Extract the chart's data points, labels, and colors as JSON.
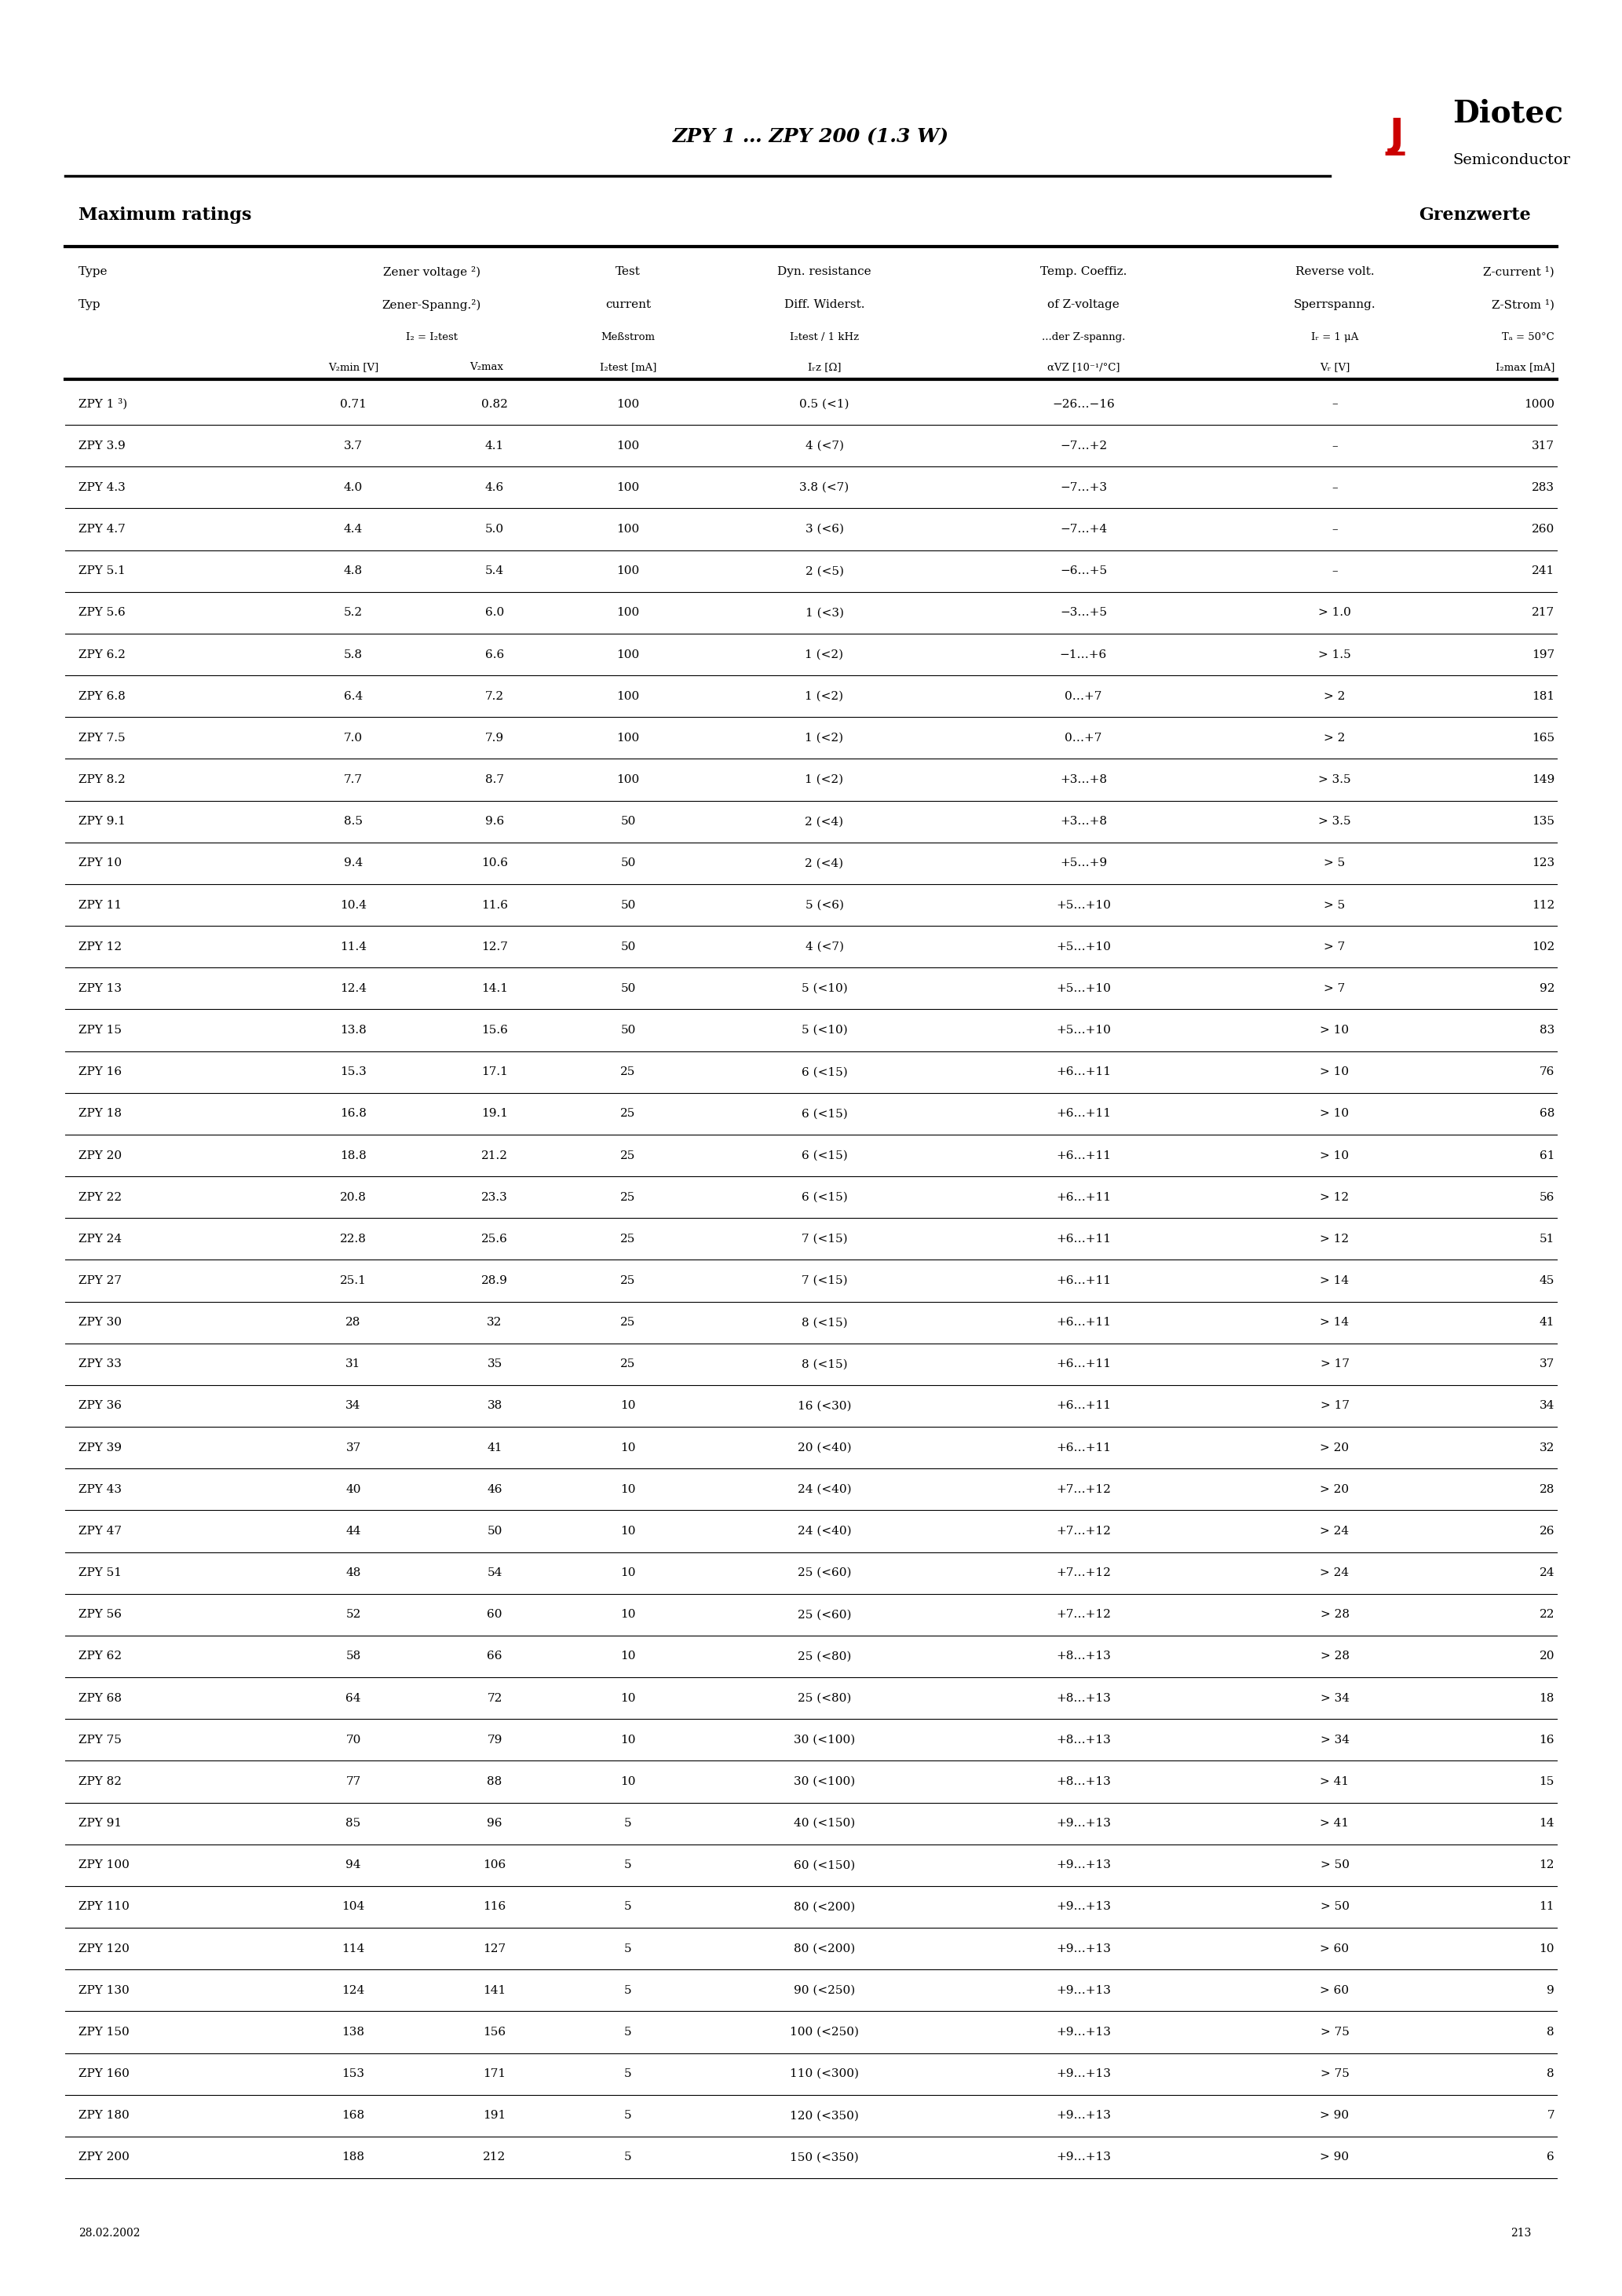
{
  "title": "ZPY 1 … ZPY 200 (1.3 W)",
  "section_left": "Maximum ratings",
  "section_right": "Grenzwerte",
  "date": "28.02.2002",
  "page": "213",
  "col_headers_en": [
    "Type",
    "Zener voltage ²)",
    "Test",
    "Dyn. resistance",
    "Temp. Coeffiz.",
    "Reverse volt.",
    "Z-current ¹)"
  ],
  "col_headers_de": [
    "Typ",
    "Zener-Spanng.²)",
    "current",
    "Diff. Widerst.",
    "of Z-voltage",
    "Sperrspanng.",
    "Z-Strom ¹)"
  ],
  "col_headers_sub": [
    "",
    "I₂ = I₂test\nV₂min [V] V₂max",
    "Meßstrom\nI₂test [mA]",
    "I₂test / 1 kHz\nI₂z [Ω]",
    "...der Z-spanng.\nαVZ [10⁻¹/°C]",
    "Iᵣ = 1 μA\nVᵣ [V]",
    "Tₐ = 50°C\nI₂max [mA]"
  ],
  "rows": [
    [
      "ZPY 1 ³)",
      "0.71",
      "0.82",
      "100",
      "0.5 (<1)",
      "−26…−16",
      "–",
      "1000"
    ],
    [
      "ZPY 3.9",
      "3.7",
      "4.1",
      "100",
      "4 (<7)",
      "−7…+2",
      "–",
      "317"
    ],
    [
      "ZPY 4.3",
      "4.0",
      "4.6",
      "100",
      "3.8 (<7)",
      "−7…+3",
      "–",
      "283"
    ],
    [
      "ZPY 4.7",
      "4.4",
      "5.0",
      "100",
      "3 (<6)",
      "−7…+4",
      "–",
      "260"
    ],
    [
      "ZPY 5.1",
      "4.8",
      "5.4",
      "100",
      "2 (<5)",
      "−6…+5",
      "–",
      "241"
    ],
    [
      "ZPY 5.6",
      "5.2",
      "6.0",
      "100",
      "1 (<3)",
      "−3…+5",
      "> 1.0",
      "217"
    ],
    [
      "ZPY 6.2",
      "5.8",
      "6.6",
      "100",
      "1 (<2)",
      "−1…+6",
      "> 1.5",
      "197"
    ],
    [
      "ZPY 6.8",
      "6.4",
      "7.2",
      "100",
      "1 (<2)",
      "0…+7",
      "> 2",
      "181"
    ],
    [
      "ZPY 7.5",
      "7.0",
      "7.9",
      "100",
      "1 (<2)",
      "0…+7",
      "> 2",
      "165"
    ],
    [
      "ZPY 8.2",
      "7.7",
      "8.7",
      "100",
      "1 (<2)",
      "+3…+8",
      "> 3.5",
      "149"
    ],
    [
      "ZPY 9.1",
      "8.5",
      "9.6",
      "50",
      "2 (<4)",
      "+3…+8",
      "> 3.5",
      "135"
    ],
    [
      "ZPY 10",
      "9.4",
      "10.6",
      "50",
      "2 (<4)",
      "+5…+9",
      "> 5",
      "123"
    ],
    [
      "ZPY 11",
      "10.4",
      "11.6",
      "50",
      "5 (<6)",
      "+5…+10",
      "> 5",
      "112"
    ],
    [
      "ZPY 12",
      "11.4",
      "12.7",
      "50",
      "4 (<7)",
      "+5…+10",
      "> 7",
      "102"
    ],
    [
      "ZPY 13",
      "12.4",
      "14.1",
      "50",
      "5 (<10)",
      "+5…+10",
      "> 7",
      "92"
    ],
    [
      "ZPY 15",
      "13.8",
      "15.6",
      "50",
      "5 (<10)",
      "+5…+10",
      "> 10",
      "83"
    ],
    [
      "ZPY 16",
      "15.3",
      "17.1",
      "25",
      "6 (<15)",
      "+6…+11",
      "> 10",
      "76"
    ],
    [
      "ZPY 18",
      "16.8",
      "19.1",
      "25",
      "6 (<15)",
      "+6…+11",
      "> 10",
      "68"
    ],
    [
      "ZPY 20",
      "18.8",
      "21.2",
      "25",
      "6 (<15)",
      "+6…+11",
      "> 10",
      "61"
    ],
    [
      "ZPY 22",
      "20.8",
      "23.3",
      "25",
      "6 (<15)",
      "+6…+11",
      "> 12",
      "56"
    ],
    [
      "ZPY 24",
      "22.8",
      "25.6",
      "25",
      "7 (<15)",
      "+6…+11",
      "> 12",
      "51"
    ],
    [
      "ZPY 27",
      "25.1",
      "28.9",
      "25",
      "7 (<15)",
      "+6…+11",
      "> 14",
      "45"
    ],
    [
      "ZPY 30",
      "28",
      "32",
      "25",
      "8 (<15)",
      "+6…+11",
      "> 14",
      "41"
    ],
    [
      "ZPY 33",
      "31",
      "35",
      "25",
      "8 (<15)",
      "+6…+11",
      "> 17",
      "37"
    ],
    [
      "ZPY 36",
      "34",
      "38",
      "10",
      "16 (<30)",
      "+6…+11",
      "> 17",
      "34"
    ],
    [
      "ZPY 39",
      "37",
      "41",
      "10",
      "20 (<40)",
      "+6…+11",
      "> 20",
      "32"
    ],
    [
      "ZPY 43",
      "40",
      "46",
      "10",
      "24 (<40)",
      "+7…+12",
      "> 20",
      "28"
    ],
    [
      "ZPY 47",
      "44",
      "50",
      "10",
      "24 (<40)",
      "+7…+12",
      "> 24",
      "26"
    ],
    [
      "ZPY 51",
      "48",
      "54",
      "10",
      "25 (<60)",
      "+7…+12",
      "> 24",
      "24"
    ],
    [
      "ZPY 56",
      "52",
      "60",
      "10",
      "25 (<60)",
      "+7…+12",
      "> 28",
      "22"
    ],
    [
      "ZPY 62",
      "58",
      "66",
      "10",
      "25 (<80)",
      "+8…+13",
      "> 28",
      "20"
    ],
    [
      "ZPY 68",
      "64",
      "72",
      "10",
      "25 (<80)",
      "+8…+13",
      "> 34",
      "18"
    ],
    [
      "ZPY 75",
      "70",
      "79",
      "10",
      "30 (<100)",
      "+8…+13",
      "> 34",
      "16"
    ],
    [
      "ZPY 82",
      "77",
      "88",
      "10",
      "30 (<100)",
      "+8…+13",
      "> 41",
      "15"
    ],
    [
      "ZPY 91",
      "85",
      "96",
      "5",
      "40 (<150)",
      "+9…+13",
      "> 41",
      "14"
    ],
    [
      "ZPY 100",
      "94",
      "106",
      "5",
      "60 (<150)",
      "+9…+13",
      "> 50",
      "12"
    ],
    [
      "ZPY 110",
      "104",
      "116",
      "5",
      "80 (<200)",
      "+9…+13",
      "> 50",
      "11"
    ],
    [
      "ZPY 120",
      "114",
      "127",
      "5",
      "80 (<200)",
      "+9…+13",
      "> 60",
      "10"
    ],
    [
      "ZPY 130",
      "124",
      "141",
      "5",
      "90 (<250)",
      "+9…+13",
      "> 60",
      "9"
    ],
    [
      "ZPY 150",
      "138",
      "156",
      "5",
      "100 (<250)",
      "+9…+13",
      "> 75",
      "8"
    ],
    [
      "ZPY 160",
      "153",
      "171",
      "5",
      "110 (<300)",
      "+9…+13",
      "> 75",
      "8"
    ],
    [
      "ZPY 180",
      "168",
      "191",
      "5",
      "120 (<350)",
      "+9…+13",
      "> 90",
      "7"
    ],
    [
      "ZPY 200",
      "188",
      "212",
      "5",
      "150 (<350)",
      "+9…+13",
      "> 90",
      "6"
    ]
  ]
}
